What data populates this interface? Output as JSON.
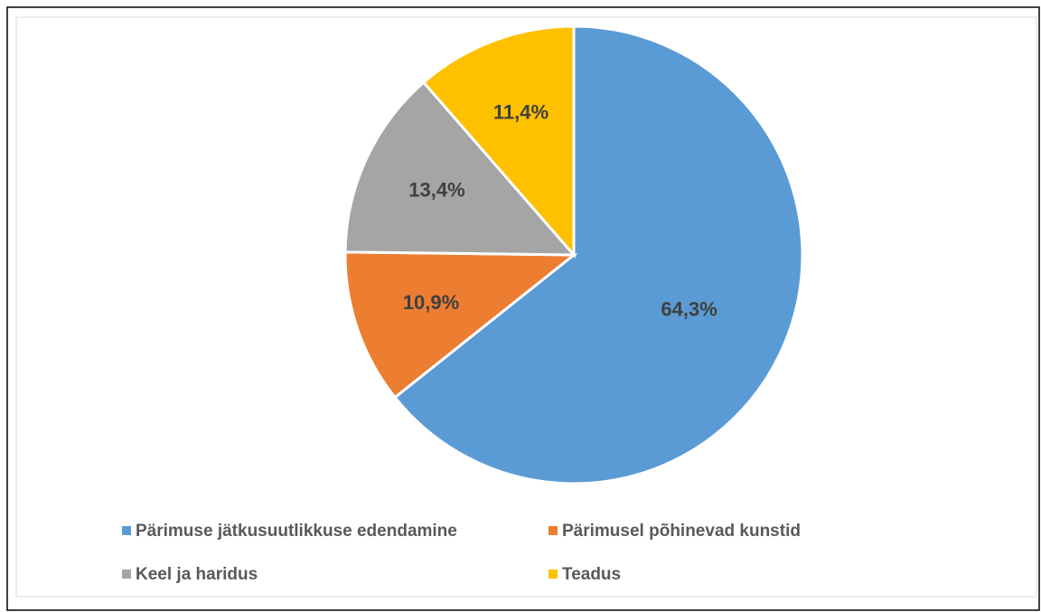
{
  "chart_data": {
    "type": "pie",
    "categories": [
      "Pärimuse jätkusuutlikkuse edendamine",
      "Pärimusel põhinevad kunstid",
      "Keel ja haridus",
      "Teadus"
    ],
    "values": [
      64.3,
      10.9,
      13.4,
      11.4
    ],
    "value_labels": [
      "64,3%",
      "10,9%",
      "13,4%",
      "11,4%"
    ],
    "colors": [
      "#5b9bd5",
      "#ed7d31",
      "#a5a5a5",
      "#ffc000"
    ],
    "legend": "bottom"
  }
}
